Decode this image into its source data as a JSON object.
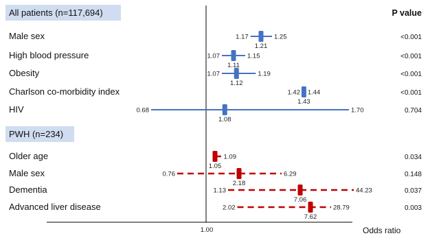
{
  "chart_data": {
    "type": "forest",
    "xlabel": "Odds ratio",
    "reference_line": 1.0,
    "reference_tick_label": "1.00",
    "pvalue_header": "P value",
    "colors": {
      "group1": "#4472C4",
      "group2": "#C00000",
      "header_bg": "#D0DCF0"
    },
    "groups": [
      {
        "title": "All patients (n=117,694)",
        "line_style": "solid",
        "rows": [
          {
            "label": "Male sex",
            "or": 1.21,
            "lower": 1.17,
            "upper": 1.25,
            "or_label": "1.21",
            "lower_label": "1.17",
            "upper_label": "1.25",
            "p": "<0.001"
          },
          {
            "label": "High blood pressure",
            "or": 1.11,
            "lower": 1.07,
            "upper": 1.15,
            "or_label": "1.11",
            "lower_label": "1.07",
            "upper_label": "1.15",
            "p": "<0.001"
          },
          {
            "label": "Obesity",
            "or": 1.12,
            "lower": 1.07,
            "upper": 1.19,
            "or_label": "1.12",
            "lower_label": "1.07",
            "upper_label": "1.19",
            "p": "<0.001"
          },
          {
            "label": "Charlson co-morbidity index",
            "or": 1.43,
            "lower": 1.42,
            "upper": 1.44,
            "or_label": "1.43",
            "lower_label": "1.42",
            "upper_label": "1.44",
            "p": "<0.001"
          },
          {
            "label": "HIV",
            "or": 1.08,
            "lower": 0.68,
            "upper": 1.7,
            "or_label": "1.08",
            "lower_label": "0.68",
            "upper_label": "1.70",
            "p": "0.704"
          }
        ]
      },
      {
        "title": "PWH (n=234)",
        "line_style": "dashed",
        "rows": [
          {
            "label": "Older age",
            "or": 1.05,
            "lower": 1.05,
            "upper": 1.09,
            "or_label": "1.05",
            "lower_label": "",
            "upper_label": "1.09",
            "p": "0.034"
          },
          {
            "label": "Male sex",
            "or": 2.18,
            "lower": 0.76,
            "upper": 6.29,
            "or_label": "2.18",
            "lower_label": "0.76",
            "upper_label": "6.29",
            "p": "0.148"
          },
          {
            "label": "Dementia",
            "or": 7.06,
            "lower": 1.13,
            "upper": 44.23,
            "or_label": "7.06",
            "lower_label": "1.13",
            "upper_label": "44.23",
            "p": "0.037"
          },
          {
            "label": "Advanced liver disease",
            "or": 7.62,
            "lower": 2.02,
            "upper": 28.79,
            "or_label": "7.62",
            "lower_label": "2.02",
            "upper_label": "28.79",
            "p": "0.003"
          }
        ]
      }
    ]
  }
}
